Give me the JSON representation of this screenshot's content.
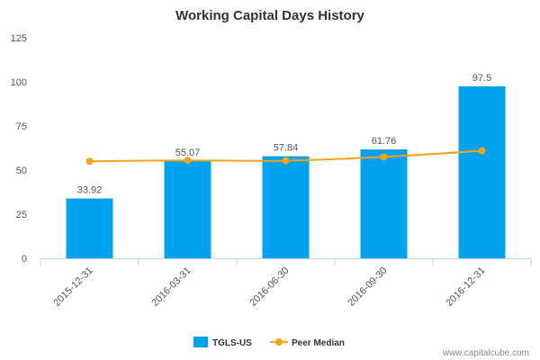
{
  "chart_data": {
    "type": "bar",
    "title": "Working Capital Days History",
    "categories": [
      "2015-12-31",
      "2016-03-31",
      "2016-06-30",
      "2016-09-30",
      "2016-12-31"
    ],
    "series": [
      {
        "name": "TGLS-US",
        "type": "bar",
        "color": "#00a2f0",
        "values": [
          33.92,
          55.07,
          57.84,
          61.76,
          97.5
        ],
        "labels": [
          "33.92",
          "55.07",
          "57.84",
          "61.76",
          "97.5"
        ]
      },
      {
        "name": "Peer Median",
        "type": "line",
        "color": "#f5a31a",
        "values": [
          55.0,
          55.5,
          55.3,
          57.5,
          61.0
        ]
      }
    ],
    "ylim": [
      0,
      125
    ],
    "yticks": [
      "0",
      "25",
      "50",
      "75",
      "100",
      "125"
    ],
    "ytick_values": [
      0,
      25,
      50,
      75,
      100,
      125
    ],
    "xlabel": "",
    "ylabel": "",
    "grid": false,
    "legend_position": "bottom-center"
  },
  "credit": "www.capitalcube.com"
}
